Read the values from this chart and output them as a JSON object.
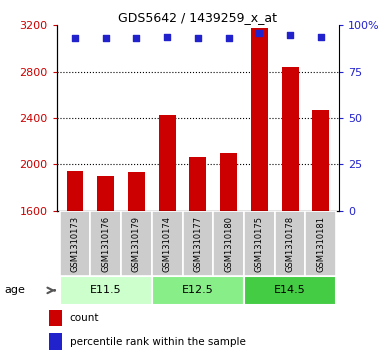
{
  "title": "GDS5642 / 1439259_x_at",
  "samples": [
    "GSM1310173",
    "GSM1310176",
    "GSM1310179",
    "GSM1310174",
    "GSM1310177",
    "GSM1310180",
    "GSM1310175",
    "GSM1310178",
    "GSM1310181"
  ],
  "counts": [
    1940,
    1895,
    1935,
    2430,
    2060,
    2100,
    3180,
    2840,
    2470
  ],
  "percentiles": [
    93,
    93,
    93,
    94,
    93,
    93,
    96,
    95,
    94
  ],
  "ylim_left": [
    1600,
    3200
  ],
  "ylim_right": [
    0,
    100
  ],
  "yticks_left": [
    1600,
    2000,
    2400,
    2800,
    3200
  ],
  "yticks_right": [
    0,
    25,
    50,
    75,
    100
  ],
  "bar_color": "#cc0000",
  "dot_color": "#2222cc",
  "groups": [
    {
      "label": "E11.5",
      "indices": [
        0,
        1,
        2
      ],
      "color": "#ccffcc"
    },
    {
      "label": "E12.5",
      "indices": [
        3,
        4,
        5
      ],
      "color": "#88ee88"
    },
    {
      "label": "E14.5",
      "indices": [
        6,
        7,
        8
      ],
      "color": "#44cc44"
    }
  ],
  "sample_box_color": "#cccccc",
  "background_color": "#ffffff",
  "ylabel_left_color": "#cc0000",
  "ylabel_right_color": "#2222cc",
  "grid_dotted_vals": [
    2000,
    2400,
    2800
  ]
}
